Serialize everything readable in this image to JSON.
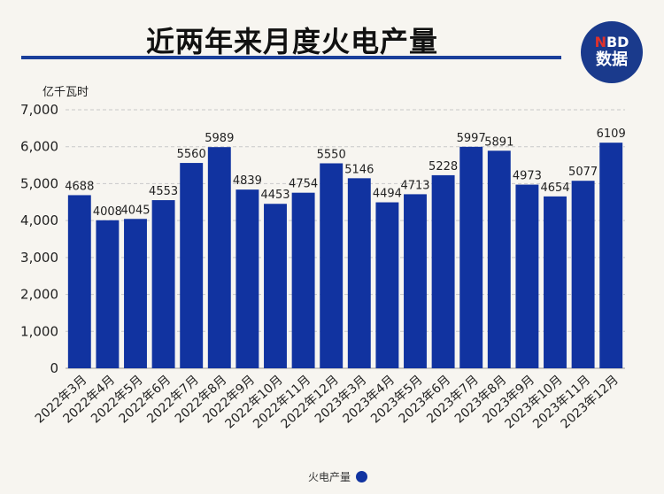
{
  "title": "近两年来月度火电产量",
  "logo": {
    "accent": "N",
    "rest": "BD",
    "bottom": "数据"
  },
  "chart_data": {
    "type": "bar",
    "title": "近两年来月度火电产量",
    "ylabel": "亿千瓦时",
    "xlabel": "",
    "ylim": [
      0,
      7000
    ],
    "yticks": [
      0,
      1000,
      2000,
      3000,
      4000,
      5000,
      6000,
      7000
    ],
    "ytick_labels": [
      "0",
      "1,000",
      "2,000",
      "3,000",
      "4,000",
      "5,000",
      "6,000",
      "7,000"
    ],
    "grid": true,
    "legend_position": "bottom",
    "color": "#1133a0",
    "categories": [
      "2022年3月",
      "2022年4月",
      "2022年5月",
      "2022年6月",
      "2022年7月",
      "2022年8月",
      "2022年9月",
      "2022年10月",
      "2022年11月",
      "2022年12月",
      "2023年3月",
      "2023年4月",
      "2023年5月",
      "2023年6月",
      "2023年7月",
      "2023年8月",
      "2023年9月",
      "2023年10月",
      "2023年11月",
      "2023年12月"
    ],
    "series": [
      {
        "name": "火电产量",
        "values": [
          4688,
          4008,
          4045,
          4553,
          5560,
          5989,
          4839,
          4453,
          4754,
          5550,
          5146,
          4494,
          4713,
          5228,
          5997,
          5891,
          4973,
          4654,
          5077,
          6109
        ]
      }
    ]
  }
}
